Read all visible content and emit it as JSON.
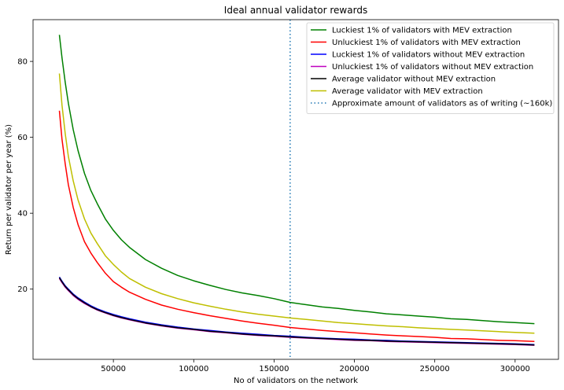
{
  "chart_data": {
    "type": "line",
    "title": "Ideal annual validator rewards",
    "xlabel": "No of validators on the network",
    "ylabel": "Return per validator per year (%)",
    "xlim": [
      0,
      327000
    ],
    "ylim": [
      1.5,
      91
    ],
    "xticks": [
      50000,
      100000,
      150000,
      200000,
      250000,
      300000
    ],
    "xtick_labels": [
      "50000",
      "100000",
      "150000",
      "200000",
      "250000",
      "300000"
    ],
    "yticks": [
      20,
      40,
      60,
      80
    ],
    "ytick_labels": [
      "20",
      "40",
      "60",
      "80"
    ],
    "grid": false,
    "legend_position": "top-right",
    "x": [
      16384,
      18000,
      20000,
      22000,
      25000,
      28000,
      32000,
      36000,
      40000,
      45000,
      50000,
      55000,
      60000,
      70000,
      80000,
      90000,
      100000,
      110000,
      120000,
      130000,
      140000,
      150000,
      160000,
      170000,
      180000,
      190000,
      200000,
      210000,
      220000,
      230000,
      240000,
      250000,
      260000,
      270000,
      280000,
      290000,
      300000,
      312000
    ],
    "series": [
      {
        "name": "Luckiest 1% of validators with MEV extraction",
        "color": "#008000",
        "style": "solid",
        "width": 1.5,
        "values": [
          87.0,
          81.0,
          74.5,
          69.0,
          62.0,
          56.5,
          50.5,
          46.0,
          42.5,
          38.5,
          35.5,
          33.0,
          31.0,
          27.8,
          25.5,
          23.6,
          22.2,
          21.0,
          19.9,
          19.0,
          18.3,
          17.5,
          16.5,
          15.9,
          15.3,
          14.9,
          14.4,
          14.0,
          13.5,
          13.2,
          12.9,
          12.6,
          12.2,
          12.0,
          11.7,
          11.4,
          11.2,
          10.9
        ]
      },
      {
        "name": "Unluckiest 1% of validators with MEV extraction",
        "color": "#ff0000",
        "style": "solid",
        "width": 1.5,
        "values": [
          67.0,
          59.5,
          53.0,
          47.5,
          41.5,
          37.0,
          32.5,
          29.5,
          27.0,
          24.2,
          22.0,
          20.5,
          19.2,
          17.3,
          15.8,
          14.7,
          13.8,
          13.0,
          12.3,
          11.6,
          11.0,
          10.5,
          9.9,
          9.5,
          9.1,
          8.8,
          8.5,
          8.2,
          7.9,
          7.7,
          7.5,
          7.3,
          7.0,
          6.9,
          6.7,
          6.5,
          6.4,
          6.2
        ]
      },
      {
        "name": "Luckiest 1% of validators without MEV extraction",
        "color": "#0000ff",
        "style": "solid",
        "width": 1.5,
        "values": [
          23.2,
          22.1,
          20.9,
          20.0,
          18.7,
          17.7,
          16.6,
          15.6,
          14.8,
          14.0,
          13.3,
          12.7,
          12.2,
          11.3,
          10.6,
          10.0,
          9.5,
          9.1,
          8.7,
          8.4,
          8.1,
          7.8,
          7.6,
          7.3,
          7.1,
          6.9,
          6.8,
          6.6,
          6.5,
          6.3,
          6.2,
          6.1,
          6.0,
          5.9,
          5.8,
          5.7,
          5.6,
          5.4
        ]
      },
      {
        "name": "Unluckiest 1% of validators without MEV extraction",
        "color": "#bf00bf",
        "style": "solid",
        "width": 1.5,
        "values": [
          22.8,
          21.7,
          20.5,
          19.6,
          18.3,
          17.3,
          16.2,
          15.3,
          14.5,
          13.7,
          13.0,
          12.4,
          11.9,
          11.0,
          10.3,
          9.7,
          9.3,
          8.8,
          8.5,
          8.1,
          7.8,
          7.6,
          7.3,
          7.1,
          6.9,
          6.7,
          6.5,
          6.4,
          6.2,
          6.1,
          6.0,
          5.9,
          5.8,
          5.7,
          5.6,
          5.5,
          5.4,
          5.2
        ]
      },
      {
        "name": "Average validator without MEV extraction",
        "color": "#000000",
        "style": "solid",
        "width": 1.5,
        "values": [
          23.0,
          21.9,
          20.7,
          19.8,
          18.5,
          17.5,
          16.4,
          15.4,
          14.6,
          13.8,
          13.1,
          12.5,
          12.0,
          11.1,
          10.4,
          9.8,
          9.4,
          8.9,
          8.6,
          8.2,
          7.9,
          7.7,
          7.4,
          7.2,
          7.0,
          6.8,
          6.6,
          6.5,
          6.3,
          6.2,
          6.1,
          6.0,
          5.9,
          5.8,
          5.7,
          5.6,
          5.5,
          5.3
        ]
      },
      {
        "name": "Average validator with MEV extraction",
        "color": "#bfbf00",
        "style": "solid",
        "width": 1.5,
        "values": [
          76.8,
          68.5,
          61.0,
          55.0,
          48.5,
          43.5,
          38.5,
          34.8,
          32.0,
          28.8,
          26.5,
          24.5,
          22.8,
          20.5,
          18.8,
          17.5,
          16.4,
          15.5,
          14.7,
          14.0,
          13.4,
          12.9,
          12.4,
          12.0,
          11.6,
          11.2,
          10.9,
          10.6,
          10.3,
          10.1,
          9.8,
          9.6,
          9.4,
          9.2,
          9.0,
          8.8,
          8.6,
          8.4
        ]
      }
    ],
    "vlines": [
      {
        "name": "Approximate amount of validators as of writing (~160k)",
        "x": 160000,
        "color": "#1f77b4",
        "style": "dotted"
      }
    ],
    "legend": [
      "Luckiest 1% of validators with MEV extraction",
      "Unluckiest 1% of validators with MEV extraction",
      "Luckiest 1% of validators without MEV extraction",
      "Unluckiest 1% of validators without MEV extraction",
      "Average validator without MEV extraction",
      "Average validator with MEV extraction",
      "Approximate amount of validators as of writing (~160k)"
    ]
  }
}
